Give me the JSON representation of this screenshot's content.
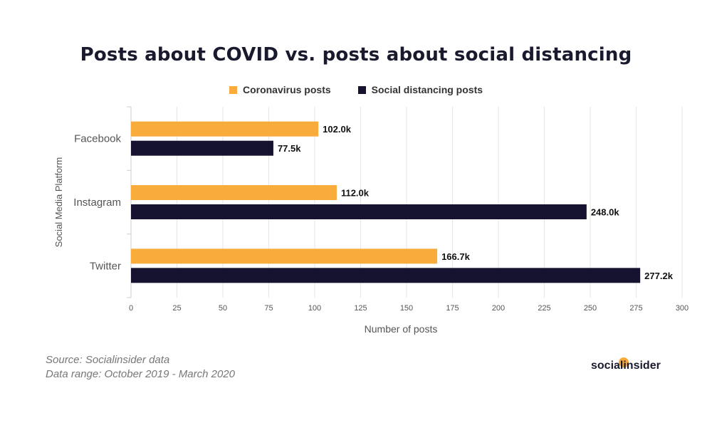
{
  "chart_data": {
    "type": "bar",
    "orientation": "horizontal",
    "title": "Posts about COVID vs. posts about social distancing",
    "xlabel": "Number of posts",
    "ylabel": "Social Media Platform",
    "categories": [
      "Facebook",
      "Instagram",
      "Twitter"
    ],
    "xlim": [
      0,
      300
    ],
    "xticks": [
      0,
      25,
      50,
      75,
      100,
      125,
      150,
      175,
      200,
      225,
      250,
      275,
      300
    ],
    "grid": true,
    "legend_position": "top-center",
    "series": [
      {
        "name": "Coronavirus posts",
        "color": "#f9ab3c",
        "values": [
          102.0,
          112.0,
          166.7
        ],
        "labels": [
          "102.0k",
          "112.0k",
          "166.7k"
        ]
      },
      {
        "name": "Social distancing posts",
        "color": "#15132f",
        "values": [
          77.5,
          248.0,
          277.2
        ],
        "labels": [
          "77.5k",
          "248.0k",
          "277.2k"
        ]
      }
    ]
  },
  "footer": {
    "source": "Source: Socialinsider data",
    "range": "Data range: October 2019 - March 2020"
  },
  "logo": {
    "text": "socialinsider",
    "dot_color": "#f9a93b"
  }
}
